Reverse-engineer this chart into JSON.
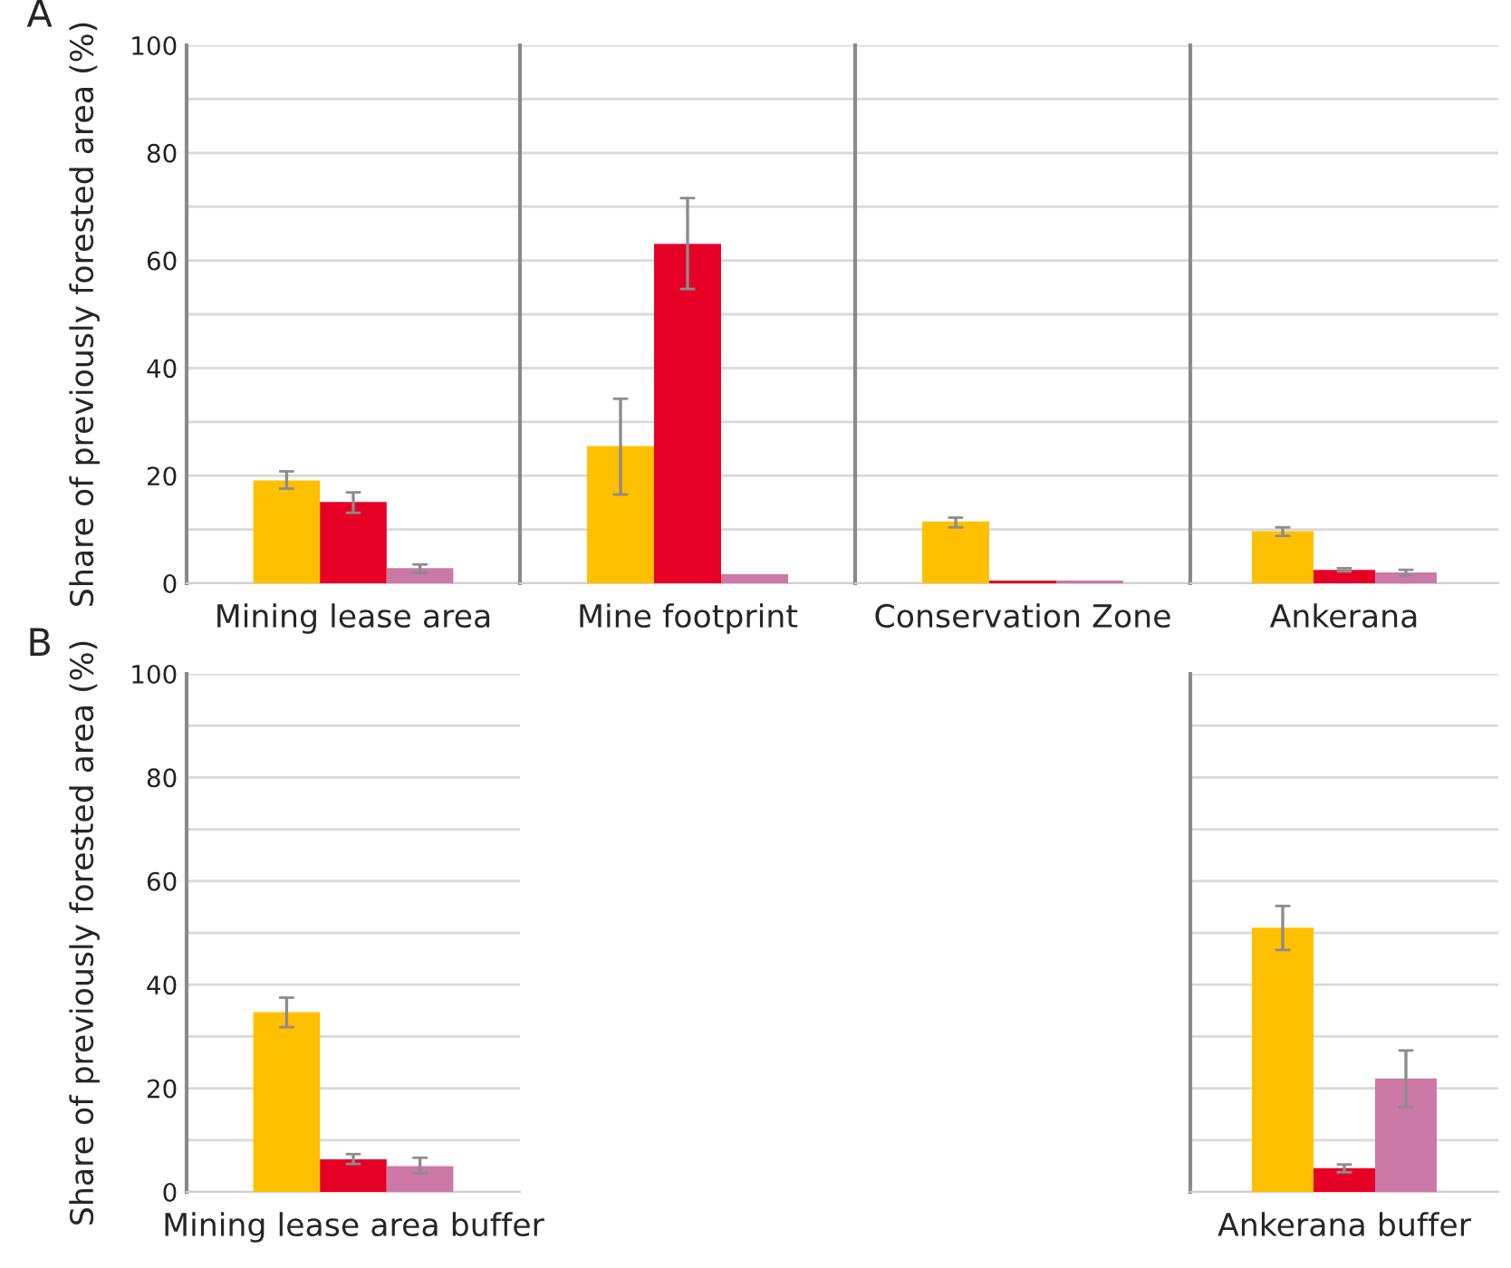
{
  "chart_data": [
    {
      "type": "bar",
      "annotations": [
        "A"
      ],
      "ylabel": "Share of previously forested area (%)",
      "categories": [
        "Mining lease area"
      ],
      "ylim": [
        0,
        100
      ],
      "yticks": [
        0,
        {
          "value": 10,
          "label": null
        },
        20,
        {
          "value": 30,
          "label": null
        },
        40,
        {
          "value": 50,
          "label": null
        },
        60,
        {
          "value": 70,
          "label": null
        },
        80,
        {
          "value": 90,
          "label": null
        },
        100
      ],
      "grid": "y",
      "series": [
        {
          "color": "#ffc000",
          "values": [
            19.1
          ],
          "errors": [
            [
              17.6,
              20.8
            ]
          ]
        },
        {
          "color": "#e60026",
          "values": [
            15.1
          ],
          "errors": [
            [
              13.1,
              16.9
            ]
          ]
        },
        {
          "color": "#cc79a7",
          "values": [
            2.8
          ],
          "errors": [
            [
              1.9,
              3.5
            ]
          ]
        }
      ]
    },
    {
      "type": "bar",
      "categories": [
        "Mine footprint"
      ],
      "ylim": [
        0,
        100
      ],
      "yticks": [
        0,
        {
          "value": 10,
          "label": null
        },
        20,
        {
          "value": 30,
          "label": null
        },
        40,
        {
          "value": 50,
          "label": null
        },
        60,
        {
          "value": 70,
          "label": null
        },
        80,
        {
          "value": 90,
          "label": null
        },
        100
      ],
      "grid": "y",
      "tick_labels": "x",
      "series": [
        {
          "color": "#ffc000",
          "values": [
            25.5
          ],
          "errors": [
            [
              16.5,
              34.3
            ]
          ]
        },
        {
          "color": "#e60026",
          "values": [
            63.1
          ],
          "errors": [
            [
              54.7,
              71.6
            ]
          ]
        },
        {
          "color": "#cc79a7",
          "values": [
            1.7
          ],
          "errors": [
            null
          ]
        }
      ]
    },
    {
      "type": "bar",
      "categories": [
        "Conservation Zone"
      ],
      "ylim": [
        0,
        100
      ],
      "yticks": [
        0,
        {
          "value": 10,
          "label": null
        },
        20,
        {
          "value": 30,
          "label": null
        },
        40,
        {
          "value": 50,
          "label": null
        },
        60,
        {
          "value": 70,
          "label": null
        },
        80,
        {
          "value": 90,
          "label": null
        },
        100
      ],
      "grid": "y",
      "tick_labels": "x",
      "series": [
        {
          "color": "#ffc000",
          "values": [
            11.5
          ],
          "errors": [
            [
              10.4,
              12.2
            ]
          ]
        },
        {
          "color": "#e60026",
          "values": [
            0.5
          ],
          "errors": [
            null
          ]
        },
        {
          "color": "#cc79a7",
          "values": [
            0.5
          ],
          "errors": [
            null
          ]
        }
      ]
    },
    {
      "type": "bar",
      "categories": [
        "Ankerana"
      ],
      "ylim": [
        0,
        100
      ],
      "yticks": [
        0,
        {
          "value": 10,
          "label": null
        },
        20,
        {
          "value": 30,
          "label": null
        },
        40,
        {
          "value": 50,
          "label": null
        },
        60,
        {
          "value": 70,
          "label": null
        },
        80,
        {
          "value": 90,
          "label": null
        },
        100
      ],
      "grid": "y",
      "tick_labels": "x",
      "series": [
        {
          "color": "#ffc000",
          "values": [
            9.7
          ],
          "errors": [
            [
              8.8,
              10.4
            ]
          ]
        },
        {
          "color": "#e60026",
          "values": [
            2.5
          ],
          "errors": [
            [
              2.2,
              2.8
            ]
          ]
        },
        {
          "color": "#cc79a7",
          "values": [
            2.0
          ],
          "errors": [
            [
              1.5,
              2.5
            ]
          ]
        }
      ]
    },
    {
      "type": "bar",
      "annotations": [
        "B"
      ],
      "ylabel": "Share of previously forested area (%)",
      "categories": [
        "Mining lease area buffer"
      ],
      "ylim": [
        0,
        100
      ],
      "yticks": [
        0,
        {
          "value": 10,
          "label": null
        },
        20,
        {
          "value": 30,
          "label": null
        },
        40,
        {
          "value": 50,
          "label": null
        },
        60,
        {
          "value": 70,
          "label": null
        },
        80,
        {
          "value": 90,
          "label": null
        },
        100
      ],
      "grid": "y",
      "series": [
        {
          "color": "#ffc000",
          "values": [
            34.7
          ],
          "errors": [
            [
              31.8,
              37.5
            ]
          ]
        },
        {
          "color": "#e60026",
          "values": [
            6.3
          ],
          "errors": [
            [
              5.4,
              7.3
            ]
          ]
        },
        {
          "color": "#cc79a7",
          "values": [
            5.0
          ],
          "errors": [
            [
              3.6,
              6.6
            ]
          ]
        }
      ]
    },
    {
      "type": "bar",
      "categories": [
        "Ankerana buffer"
      ],
      "ylim": [
        0,
        100
      ],
      "yticks": [
        0,
        {
          "value": 10,
          "label": null
        },
        20,
        {
          "value": 30,
          "label": null
        },
        40,
        {
          "value": 50,
          "label": null
        },
        60,
        {
          "value": 70,
          "label": null
        },
        80,
        {
          "value": 90,
          "label": null
        },
        100
      ],
      "grid": "y",
      "tick_labels": "x",
      "series": [
        {
          "color": "#ffc000",
          "values": [
            51.0
          ],
          "errors": [
            [
              46.7,
              55.2
            ]
          ]
        },
        {
          "color": "#e60026",
          "values": [
            4.6
          ],
          "errors": [
            [
              3.8,
              5.3
            ]
          ]
        },
        {
          "color": "#cc79a7",
          "values": [
            21.9
          ],
          "errors": [
            [
              16.4,
              27.3
            ]
          ]
        }
      ]
    }
  ]
}
